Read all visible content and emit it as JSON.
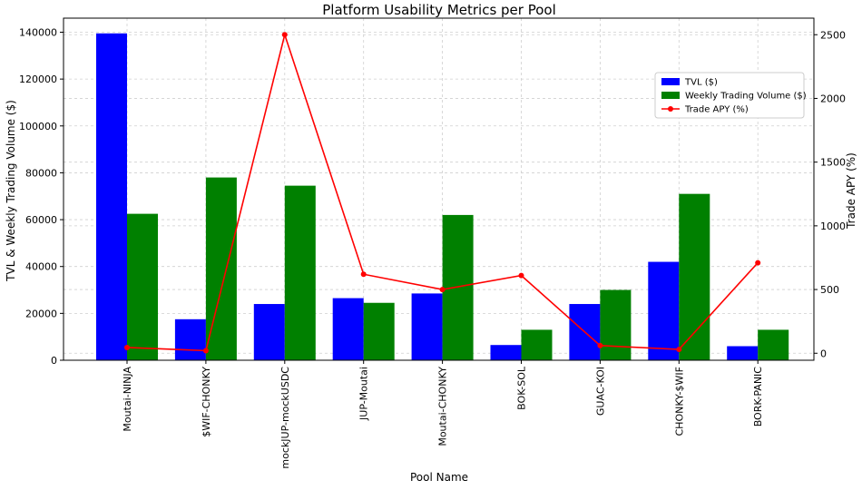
{
  "chart_data": {
    "type": "bar",
    "title": "Platform Usability Metrics per Pool",
    "xlabel": "Pool Name",
    "ylabel": "TVL & Weekly Trading Volume ($)",
    "y2label": "Trade APY (%)",
    "categories": [
      "Moutai-NINJA",
      "$WIF-CHONKY",
      "mockJUP-mockUSDC",
      "JUP-Moutai",
      "Moutai-CHONKY",
      "BOK-SOL",
      "GUAC-KOI",
      "CHONKY-$WIF",
      "BORK-PANIC"
    ],
    "series": [
      {
        "name": "TVL ($)",
        "kind": "bar",
        "axis": "left",
        "color": "#0000ff",
        "values": [
          139500,
          17500,
          24000,
          26500,
          28500,
          6500,
          24000,
          42000,
          6000
        ]
      },
      {
        "name": "Weekly Trading Volume ($)",
        "kind": "bar",
        "axis": "left",
        "color": "#008000",
        "values": [
          62500,
          78000,
          74500,
          24500,
          62000,
          13000,
          30000,
          71000,
          13000
        ]
      },
      {
        "name": "Trade APY (%)",
        "kind": "line",
        "axis": "right",
        "color": "#ff0000",
        "values": [
          45,
          20,
          2500,
          620,
          500,
          610,
          60,
          30,
          710
        ]
      }
    ],
    "ylim": [
      0,
      146000
    ],
    "y_ticks": [
      0,
      20000,
      40000,
      60000,
      80000,
      100000,
      120000,
      140000
    ],
    "y2lim": [
      -55,
      2630
    ],
    "y2_ticks": [
      0,
      500,
      1000,
      1500,
      2000,
      2500
    ],
    "grid": true,
    "legend_position": "upper-right"
  }
}
